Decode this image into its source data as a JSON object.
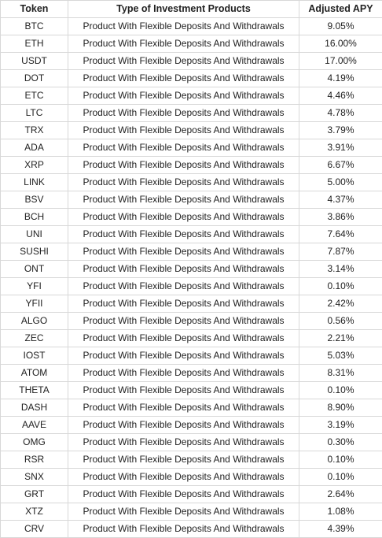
{
  "table": {
    "headers": {
      "token": "Token",
      "type": "Type of Investment Products",
      "apy": "Adjusted APY"
    },
    "rows": [
      {
        "token": "BTC",
        "type": "Product With Flexible Deposits And Withdrawals",
        "apy": "9.05%"
      },
      {
        "token": "ETH",
        "type": "Product With Flexible Deposits And Withdrawals",
        "apy": "16.00%"
      },
      {
        "token": "USDT",
        "type": "Product With Flexible Deposits And Withdrawals",
        "apy": "17.00%"
      },
      {
        "token": "DOT",
        "type": "Product With Flexible Deposits And Withdrawals",
        "apy": "4.19%"
      },
      {
        "token": "ETC",
        "type": "Product With Flexible Deposits And Withdrawals",
        "apy": "4.46%"
      },
      {
        "token": "LTC",
        "type": "Product With Flexible Deposits And Withdrawals",
        "apy": "4.78%"
      },
      {
        "token": "TRX",
        "type": "Product With Flexible Deposits And Withdrawals",
        "apy": "3.79%"
      },
      {
        "token": "ADA",
        "type": "Product With Flexible Deposits And Withdrawals",
        "apy": "3.91%"
      },
      {
        "token": "XRP",
        "type": "Product With Flexible Deposits And Withdrawals",
        "apy": "6.67%"
      },
      {
        "token": "LINK",
        "type": "Product With Flexible Deposits And Withdrawals",
        "apy": "5.00%"
      },
      {
        "token": "BSV",
        "type": "Product With Flexible Deposits And Withdrawals",
        "apy": "4.37%"
      },
      {
        "token": "BCH",
        "type": "Product With Flexible Deposits And Withdrawals",
        "apy": "3.86%"
      },
      {
        "token": "UNI",
        "type": "Product With Flexible Deposits And Withdrawals",
        "apy": "7.64%"
      },
      {
        "token": "SUSHI",
        "type": "Product With Flexible Deposits And Withdrawals",
        "apy": "7.87%"
      },
      {
        "token": "ONT",
        "type": "Product With Flexible Deposits And Withdrawals",
        "apy": "3.14%"
      },
      {
        "token": "YFI",
        "type": "Product With Flexible Deposits And Withdrawals",
        "apy": "0.10%"
      },
      {
        "token": "YFII",
        "type": "Product With Flexible Deposits And Withdrawals",
        "apy": "2.42%"
      },
      {
        "token": "ALGO",
        "type": "Product With Flexible Deposits And Withdrawals",
        "apy": "0.56%"
      },
      {
        "token": "ZEC",
        "type": "Product With Flexible Deposits And Withdrawals",
        "apy": "2.21%"
      },
      {
        "token": "IOST",
        "type": "Product With Flexible Deposits And Withdrawals",
        "apy": "5.03%"
      },
      {
        "token": "ATOM",
        "type": "Product With Flexible Deposits And Withdrawals",
        "apy": "8.31%"
      },
      {
        "token": "THETA",
        "type": "Product With Flexible Deposits And Withdrawals",
        "apy": "0.10%"
      },
      {
        "token": "DASH",
        "type": "Product With Flexible Deposits And Withdrawals",
        "apy": "8.90%"
      },
      {
        "token": "AAVE",
        "type": "Product With Flexible Deposits And Withdrawals",
        "apy": "3.19%"
      },
      {
        "token": "OMG",
        "type": "Product With Flexible Deposits And Withdrawals",
        "apy": "0.30%"
      },
      {
        "token": "RSR",
        "type": "Product With Flexible Deposits And Withdrawals",
        "apy": "0.10%"
      },
      {
        "token": "SNX",
        "type": "Product With Flexible Deposits And Withdrawals",
        "apy": "0.10%"
      },
      {
        "token": "GRT",
        "type": "Product With Flexible Deposits And Withdrawals",
        "apy": "2.64%"
      },
      {
        "token": "XTZ",
        "type": "Product With Flexible Deposits And Withdrawals",
        "apy": "1.08%"
      },
      {
        "token": "CRV",
        "type": "Product With Flexible Deposits And Withdrawals",
        "apy": "4.39%"
      }
    ]
  }
}
